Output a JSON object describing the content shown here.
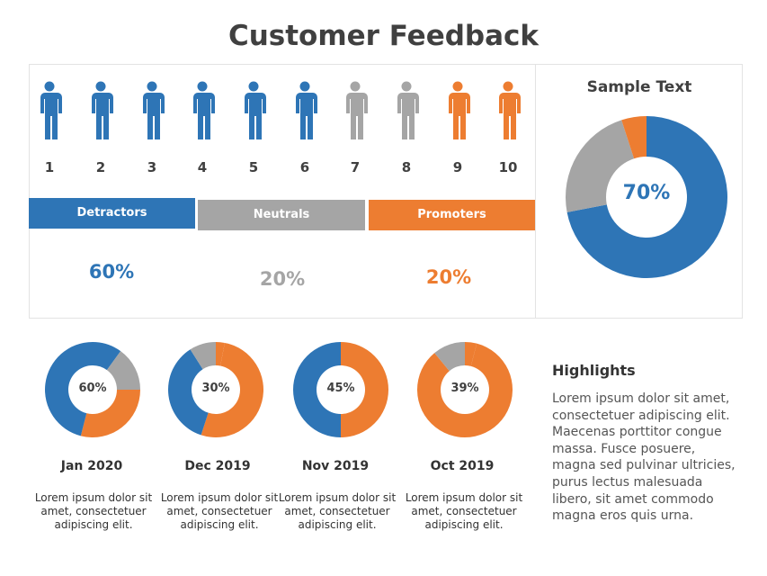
{
  "title": "Customer Feedback",
  "colors": {
    "blue": "#2E75B6",
    "gray": "#A5A5A5",
    "orange": "#ED7D31",
    "text": "#404040"
  },
  "scale": {
    "people": [
      {
        "n": "1",
        "color": "blue"
      },
      {
        "n": "2",
        "color": "blue"
      },
      {
        "n": "3",
        "color": "blue"
      },
      {
        "n": "4",
        "color": "blue"
      },
      {
        "n": "5",
        "color": "blue"
      },
      {
        "n": "6",
        "color": "blue"
      },
      {
        "n": "7",
        "color": "gray"
      },
      {
        "n": "8",
        "color": "gray"
      },
      {
        "n": "9",
        "color": "orange"
      },
      {
        "n": "10",
        "color": "orange"
      }
    ]
  },
  "groups": [
    {
      "label": "Detractors",
      "value": "60%",
      "color": "blue"
    },
    {
      "label": "Neutrals",
      "value": "20%",
      "color": "gray"
    },
    {
      "label": "Promoters",
      "value": "20%",
      "color": "orange"
    }
  ],
  "summary": {
    "title": "Sample Text",
    "value": "70%",
    "segments": [
      {
        "color": "blue",
        "pct": 72
      },
      {
        "color": "gray",
        "pct": 23
      },
      {
        "color": "orange",
        "pct": 5
      }
    ]
  },
  "months": [
    {
      "label": "Jan 2020",
      "value": "60%",
      "desc": "Lorem ipsum dolor sit amet, consectetuer adipiscing elit.",
      "segments": [
        {
          "color": "blue",
          "pct": 10
        },
        {
          "color": "gray",
          "pct": 15
        },
        {
          "color": "orange",
          "pct": 29
        },
        {
          "color": "blue",
          "pct": 46
        }
      ]
    },
    {
      "label": "Dec 2019",
      "value": "30%",
      "desc": "Lorem ipsum dolor sit amet, consectetuer adipiscing elit.",
      "segments": [
        {
          "color": "orange",
          "pct": 3
        },
        {
          "color": "orange",
          "pct": 52
        },
        {
          "color": "blue",
          "pct": 36
        },
        {
          "color": "gray",
          "pct": 9
        }
      ]
    },
    {
      "label": "Nov 2019",
      "value": "45%",
      "desc": "Lorem ipsum dolor sit amet, consectetuer adipiscing elit.",
      "segments": [
        {
          "color": "orange",
          "pct": 50
        },
        {
          "color": "blue",
          "pct": 50
        }
      ]
    },
    {
      "label": "Oct 2019",
      "value": "39%",
      "desc": "Lorem ipsum dolor sit amet, consectetuer adipiscing elit.",
      "segments": [
        {
          "color": "orange",
          "pct": 4
        },
        {
          "color": "orange",
          "pct": 85
        },
        {
          "color": "gray",
          "pct": 11
        }
      ]
    }
  ],
  "highlights": {
    "title": "Highlights",
    "body": "Lorem ipsum dolor sit amet, consectetuer adipiscing elit. Maecenas porttitor congue massa. Fusce posuere, magna sed pulvinar ultricies, purus lectus malesuada libero, sit amet commodo magna eros quis urna."
  }
}
